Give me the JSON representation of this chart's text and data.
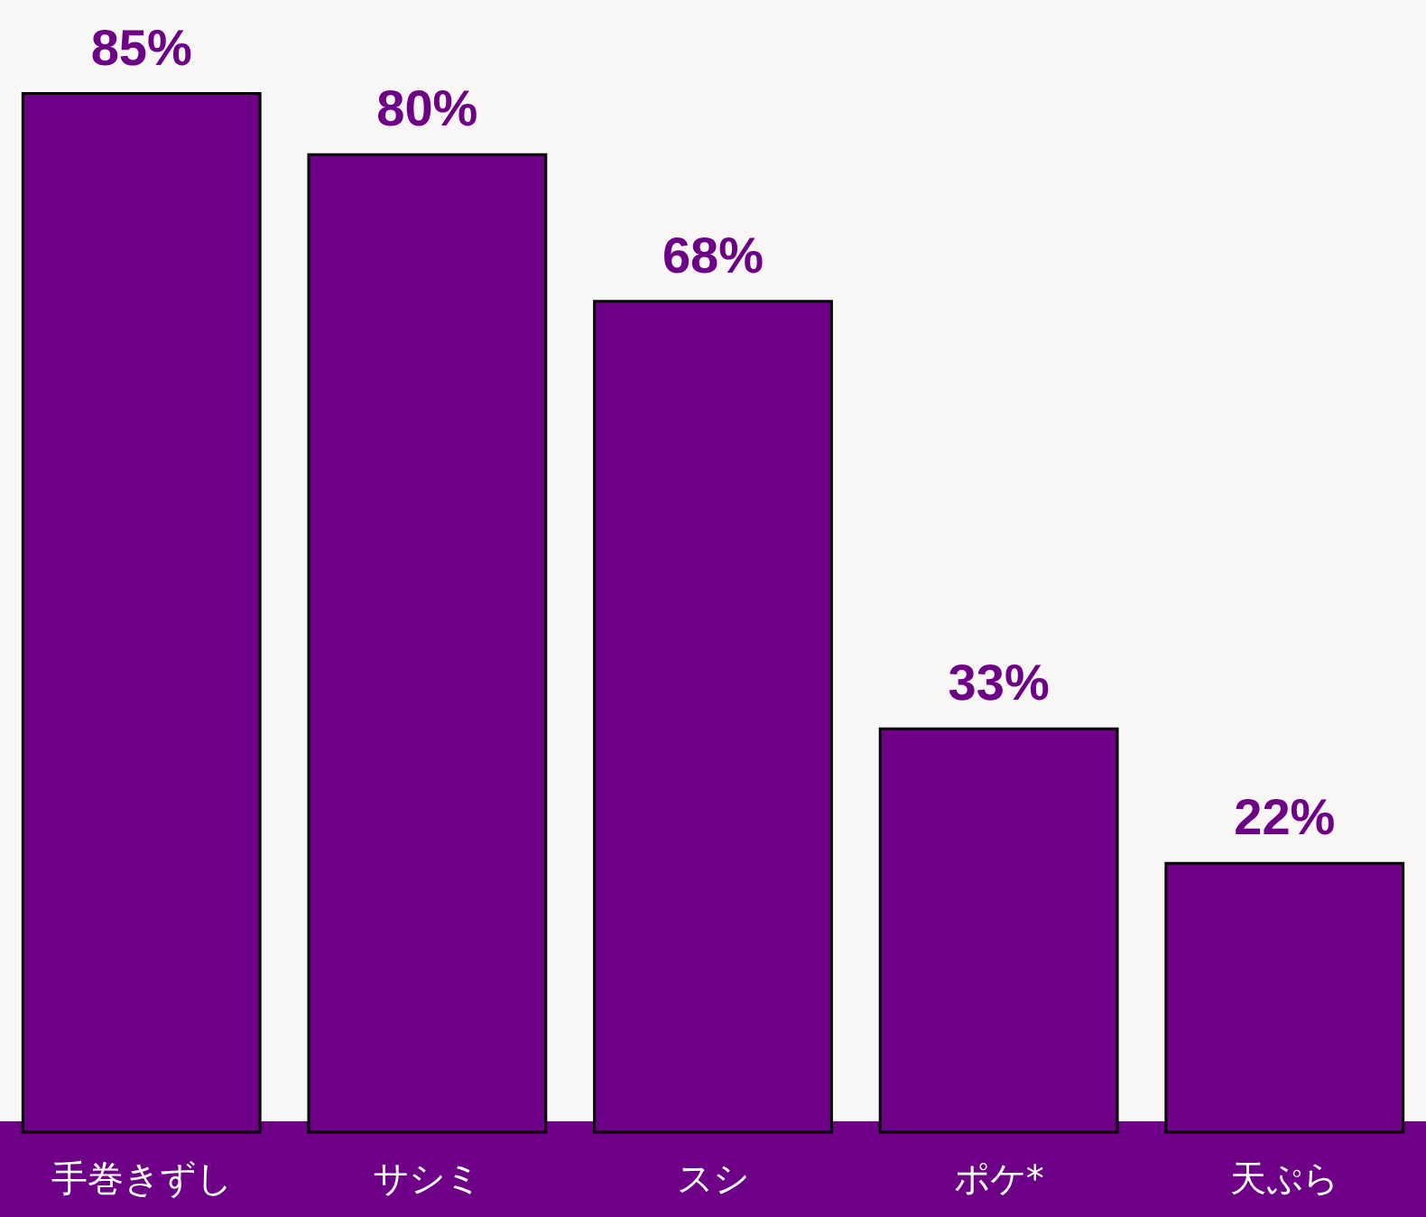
{
  "chart_data": {
    "type": "bar",
    "categories": [
      "手巻きずし",
      "サシミ",
      "スシ",
      "ポケ*",
      "天ぷら"
    ],
    "values": [
      85,
      80,
      68,
      33,
      22
    ],
    "color": "#6e0087",
    "value_labels": [
      "85%",
      "80%",
      "68%",
      "33%",
      "22%"
    ]
  }
}
